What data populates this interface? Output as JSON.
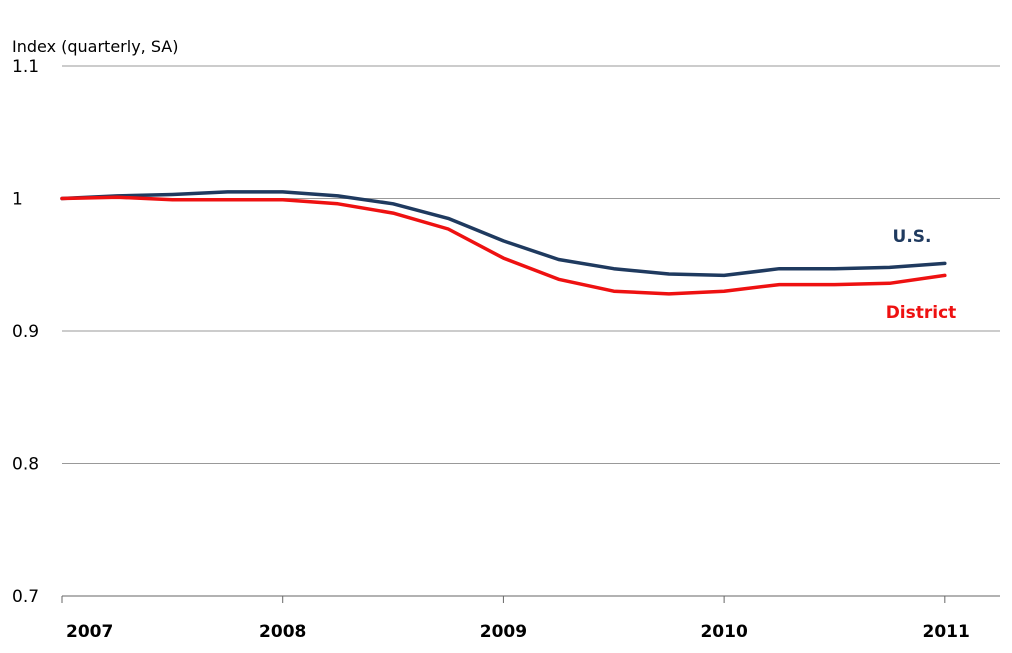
{
  "chart_data": {
    "type": "line",
    "title": "",
    "ylabel": "Index (quarterly, SA)",
    "xlabel": "",
    "ylim": [
      0.7,
      1.1
    ],
    "yticks": [
      "0.7",
      "0.8",
      "0.9",
      "1",
      "1.1"
    ],
    "xlim": [
      2007.0,
      2011.25
    ],
    "xticks": [
      "2007",
      "2008",
      "2009",
      "2010",
      "2011"
    ],
    "grid": true,
    "legend": "inline",
    "x": [
      2007.0,
      2007.25,
      2007.5,
      2007.75,
      2008.0,
      2008.25,
      2008.5,
      2008.75,
      2009.0,
      2009.25,
      2009.5,
      2009.75,
      2010.0,
      2010.25,
      2010.5,
      2010.75,
      2011.0
    ],
    "series": [
      {
        "name": "U.S.",
        "color": "#1f3a5f",
        "values": [
          1.0,
          1.002,
          1.003,
          1.005,
          1.005,
          1.002,
          0.996,
          0.985,
          0.968,
          0.954,
          0.947,
          0.943,
          0.942,
          0.947,
          0.947,
          0.948,
          0.951
        ]
      },
      {
        "name": "District",
        "color": "#ee1111",
        "values": [
          1.0,
          1.001,
          0.999,
          0.999,
          0.999,
          0.996,
          0.989,
          0.977,
          0.955,
          0.939,
          0.93,
          0.928,
          0.93,
          0.935,
          0.935,
          0.936,
          0.942
        ]
      }
    ]
  }
}
